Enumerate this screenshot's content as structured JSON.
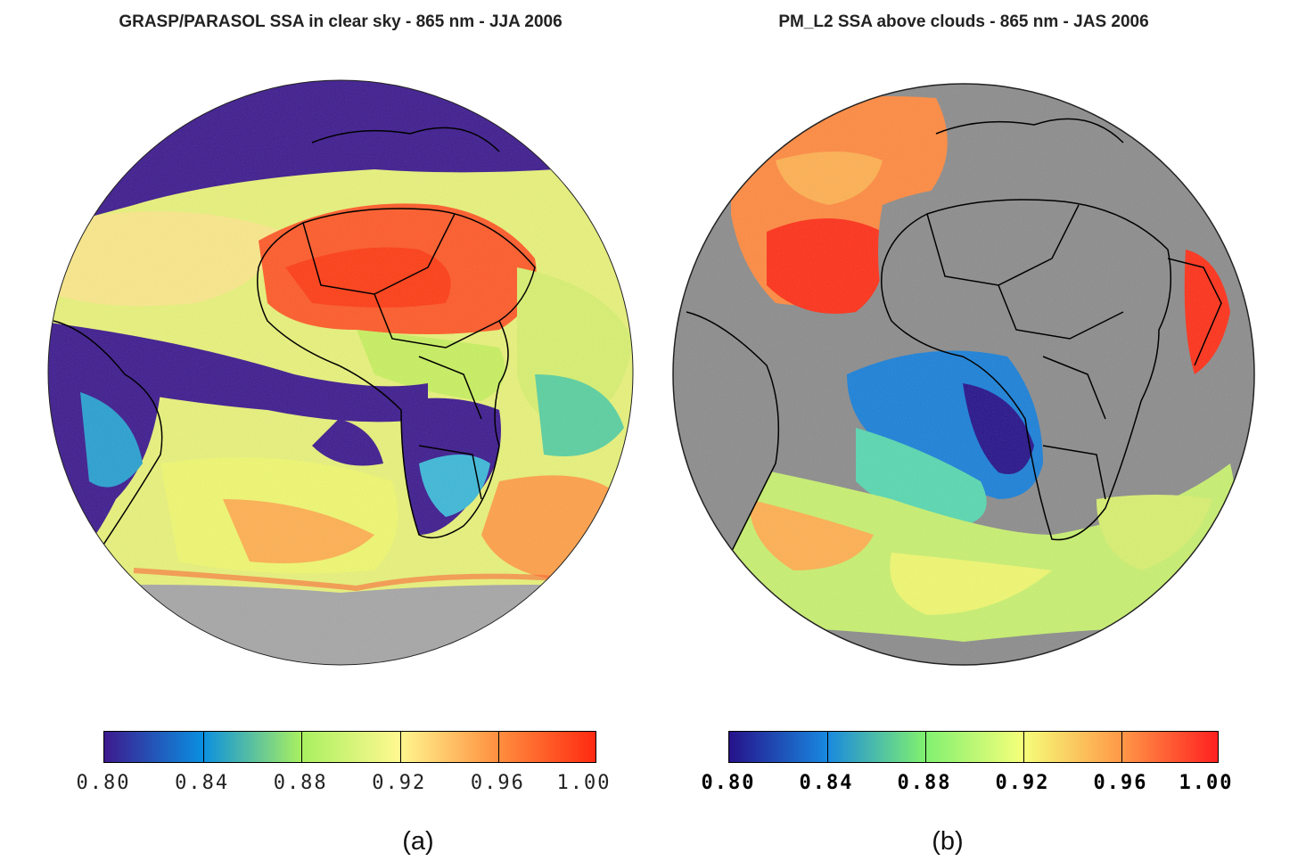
{
  "panels": [
    {
      "title": "GRASP/PARASOL SSA in clear sky - 865 nm - JJA 2006",
      "caption": "(a)",
      "colorbar": {
        "ticks": [
          "0.80",
          "0.84",
          "0.88",
          "0.92",
          "0.96",
          "1.00"
        ],
        "colors": [
          "#3d1a8e",
          "#0a8fe0",
          "#a8f060",
          "#fff890",
          "#ff9040",
          "#ff2a10"
        ]
      }
    },
    {
      "title": "PM_L2 SSA above clouds - 865 nm - JAS 2006",
      "caption": "(b)",
      "colorbar": {
        "ticks": [
          "0.80",
          "0.84",
          "0.88",
          "0.92",
          "0.96",
          "1.00"
        ],
        "colors": [
          "#26128a",
          "#1888e0",
          "#80f070",
          "#f5ff7a",
          "#ff9a48",
          "#ff2020"
        ]
      }
    }
  ],
  "colors": {
    "land_gray": "#8c8c8c",
    "low_ssa": "#3d1a8e",
    "high_ssa": "#ff3c14"
  }
}
